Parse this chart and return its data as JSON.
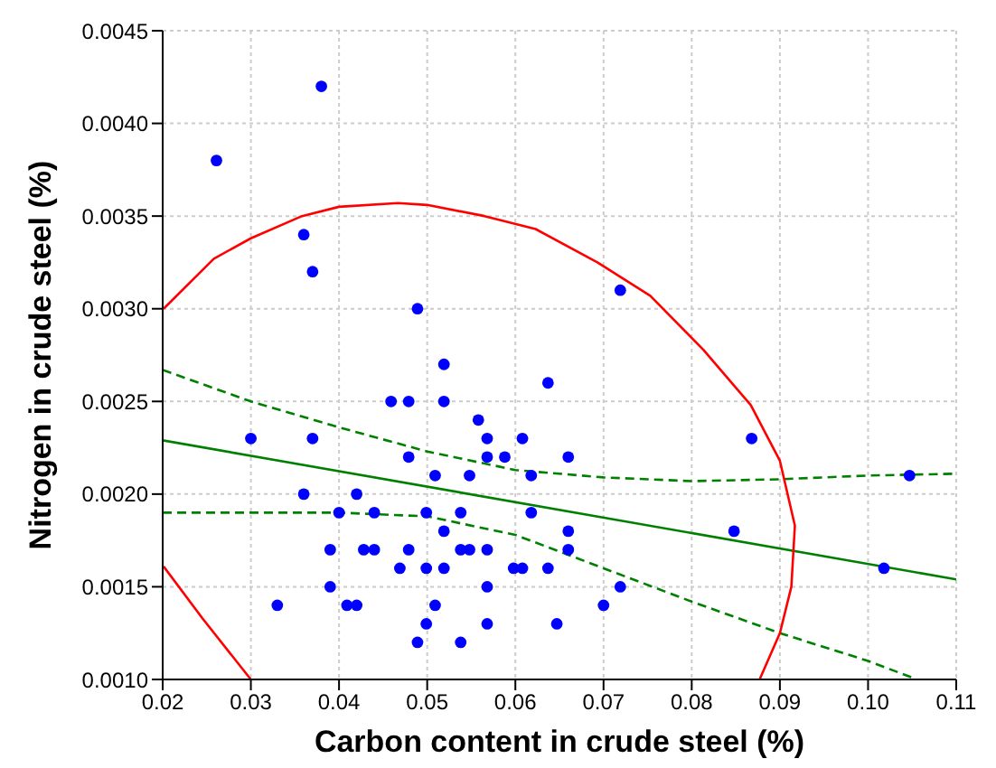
{
  "chart_data": {
    "type": "scatter",
    "xlabel": "Carbon content in crude steel (%)",
    "ylabel": "Nitrogen in crude steel (%)",
    "xlim": [
      0.02,
      0.11
    ],
    "xticks": [
      0.02,
      0.03,
      0.04,
      0.05,
      0.06,
      0.07,
      0.08,
      0.09,
      {
        "value": 0.1,
        "label": "0.10"
      },
      0.11
    ],
    "ylim": [
      0.001,
      0.0045
    ],
    "yticks": [
      {
        "value": 0.001,
        "label": "0.0010"
      },
      0.0015,
      {
        "value": 0.002,
        "label": "0.0020"
      },
      0.0025,
      {
        "value": 0.003,
        "label": "0.0030"
      },
      0.0035,
      {
        "value": 0.004,
        "label": "0.0040"
      },
      0.0045
    ],
    "grid": true,
    "series": [
      {
        "type": "scatter",
        "color": "#0000ff",
        "marker": "circle",
        "x": [
          0.038,
          0.0261,
          0.036,
          0.037,
          0.0489,
          0.0719,
          0.0519,
          0.0637,
          0.0459,
          0.0479,
          0.0519,
          0.0558,
          0.03,
          0.037,
          0.0568,
          0.0608,
          0.0868,
          0.066,
          0.0479,
          0.0568,
          0.0588,
          0.0509,
          0.0548,
          0.0618,
          0.1047,
          0.036,
          0.042,
          0.04,
          0.044,
          0.0499,
          0.0538,
          0.0618,
          0.0519,
          0.066,
          0.0848,
          0.039,
          0.0428,
          0.044,
          0.0479,
          0.0538,
          0.0548,
          0.0568,
          0.066,
          0.0469,
          0.0499,
          0.0519,
          0.0598,
          0.0608,
          0.0637,
          0.1018,
          0.039,
          0.0568,
          0.0719,
          0.033,
          0.0409,
          0.042,
          0.0509,
          0.07,
          0.0499,
          0.0568,
          0.0647,
          0.0489,
          0.0538
        ],
        "values": [
          0.0042,
          0.0038,
          0.0034,
          0.0032,
          0.003,
          0.0031,
          0.0027,
          0.0026,
          0.0025,
          0.0025,
          0.0025,
          0.0024,
          0.0023,
          0.0023,
          0.0023,
          0.0023,
          0.0023,
          0.0022,
          0.0022,
          0.0022,
          0.0022,
          0.0021,
          0.0021,
          0.0021,
          0.0021,
          0.002,
          0.002,
          0.0019,
          0.0019,
          0.0019,
          0.0019,
          0.0019,
          0.0018,
          0.0018,
          0.0018,
          0.0017,
          0.0017,
          0.0017,
          0.0017,
          0.0017,
          0.0017,
          0.0017,
          0.0017,
          0.0016,
          0.0016,
          0.0016,
          0.0016,
          0.0016,
          0.0016,
          0.0016,
          0.0015,
          0.0015,
          0.0015,
          0.0014,
          0.0014,
          0.0014,
          0.0014,
          0.0014,
          0.0013,
          0.0013,
          0.0013,
          0.0012,
          0.0012
        ]
      },
      {
        "type": "line",
        "color": "#008000",
        "line_style": "solid",
        "x": [
          0.02,
          0.11
        ],
        "values": [
          0.00229,
          0.00154
        ]
      },
      {
        "type": "line",
        "color": "#008000",
        "line_style": "dashed",
        "x": [
          0.02,
          0.03,
          0.04,
          0.05,
          0.06,
          0.07,
          0.08,
          0.09,
          0.1,
          0.11
        ],
        "values": [
          0.00267,
          0.0025,
          0.00236,
          0.00223,
          0.00213,
          0.00209,
          0.00207,
          0.00208,
          0.0021,
          0.00211
        ]
      },
      {
        "type": "line",
        "color": "#008000",
        "line_style": "dashed",
        "x": [
          0.02,
          0.03,
          0.04,
          0.05,
          0.06,
          0.07,
          0.08,
          0.09,
          0.1,
          0.105
        ],
        "values": [
          0.0019,
          0.0019,
          0.0019,
          0.00188,
          0.00178,
          0.0016,
          0.00142,
          0.00125,
          0.0011,
          0.00101
        ]
      },
      {
        "type": "line",
        "color": "#ff0000",
        "line_style": "solid",
        "x": [
          0.0201,
          0.0258,
          0.03,
          0.0358,
          0.04,
          0.0467,
          0.05,
          0.0565,
          0.0623,
          0.0693,
          0.0753,
          0.0813,
          0.0867,
          0.09,
          0.0917,
          0.0913,
          0.09,
          0.0877,
          0.05,
          0.0201,
          0.0245,
          0.03
        ],
        "values": [
          0.003,
          0.00327,
          0.00338,
          0.0035,
          0.00355,
          0.00357,
          0.00356,
          0.0035,
          0.00343,
          0.00325,
          0.00307,
          0.00278,
          0.00248,
          0.00218,
          0.00183,
          0.0015,
          0.00125,
          0.001,
          null,
          0.00161,
          0.00133,
          0.001
        ]
      }
    ]
  }
}
